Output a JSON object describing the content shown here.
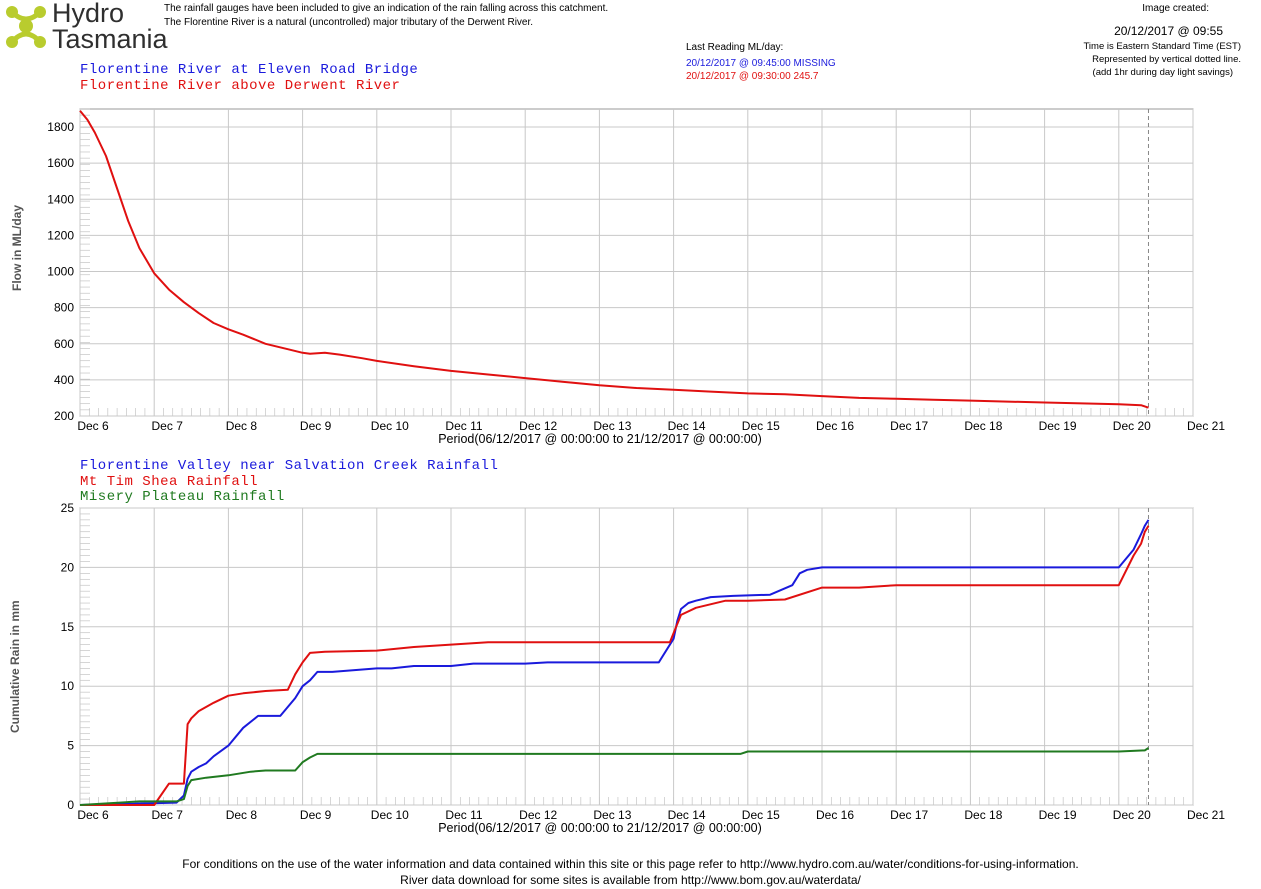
{
  "brand": {
    "line1": "Hydro",
    "line2": "Tasmania"
  },
  "intro": {
    "line1": "The rainfall gauges have been included to give an indication of the rain falling across this catchment.",
    "line2": "The Florentine River is a natural (uncontrolled) major tributary of the Derwent River."
  },
  "last_reading": {
    "label": "Last Reading ML/day:",
    "blue": "20/12/2017 @ 09:45:00 MISSING",
    "red": "20/12/2017 @ 09:30:00  245.7"
  },
  "image_created": {
    "label": "Image created:",
    "datetime": "20/12/2017 @ 09:55",
    "note1": "Time is Eastern Standard Time (EST)",
    "note2": "Represented by vertical dotted line.",
    "note3": "(add 1hr during day light savings)"
  },
  "colors": {
    "blue": "#1a1adc",
    "red": "#e01010",
    "green": "#207a20",
    "grid": "#c8c8c8"
  },
  "footer": {
    "line1": "For conditions on the use of the water information and data contained within this site or this page refer to http://www.hydro.com.au/water/conditions-for-using-information.",
    "line2": "River data download for some sites is available from http://www.bom.gov.au/waterdata/"
  },
  "chart_data": [
    {
      "type": "line",
      "title": "",
      "legend": [
        "Florentine River at Eleven Road Bridge",
        "Florentine River above Derwent River"
      ],
      "ylabel": "Flow in ML/day",
      "xlabel": "Period(06/12/2017 @ 00:00:00 to 21/12/2017 @ 00:00:00)",
      "x_ticks": [
        "Dec 6",
        "Dec 7",
        "Dec 8",
        "Dec 9",
        "Dec 10",
        "Dec 11",
        "Dec 12",
        "Dec 13",
        "Dec 14",
        "Dec 15",
        "Dec 16",
        "Dec 17",
        "Dec 18",
        "Dec 19",
        "Dec 20",
        "Dec 21"
      ],
      "ylim": [
        200,
        1900
      ],
      "y_ticks": [
        200,
        400,
        600,
        800,
        1000,
        1200,
        1400,
        1600,
        1800
      ],
      "current_time_marker": 14.4,
      "series": [
        {
          "name": "Florentine River at Eleven Road Bridge",
          "color": "blue",
          "x": [],
          "values": []
        },
        {
          "name": "Florentine River above Derwent River",
          "color": "red",
          "x": [
            0,
            0.1,
            0.2,
            0.35,
            0.5,
            0.65,
            0.8,
            1.0,
            1.2,
            1.4,
            1.6,
            1.8,
            2.0,
            2.2,
            2.5,
            2.8,
            3.0,
            3.1,
            3.3,
            3.5,
            3.8,
            4.0,
            4.5,
            5.0,
            5.5,
            6.0,
            6.5,
            7.0,
            7.5,
            8.0,
            8.5,
            9.0,
            9.5,
            10.0,
            10.5,
            11.0,
            11.5,
            12.0,
            12.5,
            13.0,
            13.5,
            14.0,
            14.3,
            14.4
          ],
          "values": [
            1890,
            1840,
            1770,
            1640,
            1460,
            1280,
            1130,
            990,
            900,
            830,
            770,
            715,
            680,
            650,
            600,
            570,
            550,
            545,
            550,
            540,
            520,
            505,
            475,
            450,
            430,
            410,
            390,
            370,
            355,
            345,
            335,
            325,
            320,
            310,
            300,
            295,
            290,
            285,
            280,
            275,
            270,
            265,
            260,
            246
          ]
        }
      ]
    },
    {
      "type": "line",
      "title": "",
      "legend": [
        "Florentine Valley near Salvation Creek Rainfall",
        "Mt Tim Shea Rainfall",
        "Misery Plateau Rainfall"
      ],
      "ylabel": "Cumulative Rain in mm",
      "xlabel": "Period(06/12/2017 @ 00:00:00 to 21/12/2017 @ 00:00:00)",
      "x_ticks": [
        "Dec 6",
        "Dec 7",
        "Dec 8",
        "Dec 9",
        "Dec 10",
        "Dec 11",
        "Dec 12",
        "Dec 13",
        "Dec 14",
        "Dec 15",
        "Dec 16",
        "Dec 17",
        "Dec 18",
        "Dec 19",
        "Dec 20",
        "Dec 21"
      ],
      "ylim": [
        0,
        25
      ],
      "y_ticks": [
        0,
        5,
        10,
        15,
        20,
        25
      ],
      "current_time_marker": 14.4,
      "series": [
        {
          "name": "Florentine Valley near Salvation Creek Rainfall",
          "color": "blue",
          "x": [
            0,
            1.3,
            1.4,
            1.45,
            1.5,
            1.6,
            1.7,
            1.8,
            2.0,
            2.2,
            2.4,
            2.7,
            2.9,
            3.0,
            3.1,
            3.2,
            3.4,
            4.0,
            4.2,
            4.5,
            5.0,
            5.3,
            6.0,
            6.3,
            7.5,
            7.8,
            8.0,
            8.05,
            8.1,
            8.2,
            8.3,
            8.5,
            8.8,
            9.3,
            9.6,
            9.7,
            9.8,
            10.0,
            10.5,
            11.0,
            14.0,
            14.2,
            14.3,
            14.35,
            14.4
          ],
          "values": [
            0,
            0.2,
            0.8,
            2.2,
            2.8,
            3.2,
            3.5,
            4.1,
            5.0,
            6.5,
            7.5,
            7.5,
            9.0,
            10.0,
            10.5,
            11.2,
            11.2,
            11.5,
            11.5,
            11.7,
            11.7,
            11.9,
            11.9,
            12.0,
            12.0,
            12.0,
            14.0,
            15.5,
            16.5,
            17.0,
            17.2,
            17.5,
            17.6,
            17.7,
            18.5,
            19.5,
            19.8,
            20.0,
            20.0,
            20.0,
            20.0,
            21.5,
            22.8,
            23.5,
            24.0
          ]
        },
        {
          "name": "Mt Tim Shea Rainfall",
          "color": "red",
          "x": [
            0,
            1.0,
            1.2,
            1.4,
            1.45,
            1.5,
            1.6,
            1.8,
            2.0,
            2.2,
            2.5,
            2.8,
            2.9,
            3.0,
            3.1,
            3.3,
            4.0,
            4.5,
            5.0,
            5.5,
            7.0,
            7.95,
            8.1,
            8.3,
            8.7,
            9.0,
            9.5,
            10.0,
            10.5,
            11.0,
            14.0,
            14.2,
            14.3,
            14.35,
            14.4
          ],
          "values": [
            0,
            0,
            1.8,
            1.8,
            6.8,
            7.3,
            7.9,
            8.6,
            9.2,
            9.4,
            9.6,
            9.7,
            11.0,
            12.0,
            12.8,
            12.9,
            13.0,
            13.3,
            13.5,
            13.7,
            13.7,
            13.7,
            16.0,
            16.6,
            17.2,
            17.2,
            17.3,
            18.3,
            18.3,
            18.5,
            18.5,
            21.0,
            22.0,
            23.0,
            23.5
          ]
        },
        {
          "name": "Misery Plateau Rainfall",
          "color": "green",
          "x": [
            0,
            0.8,
            1.0,
            1.3,
            1.4,
            1.45,
            1.5,
            1.7,
            2.0,
            2.3,
            2.5,
            2.9,
            3.0,
            3.1,
            3.2,
            4.0,
            5.0,
            6.0,
            7.0,
            8.0,
            8.9,
            9.0,
            10.0,
            11.0,
            12.0,
            13.0,
            14.0,
            14.35,
            14.4
          ],
          "values": [
            0,
            0.3,
            0.3,
            0.3,
            0.5,
            1.6,
            2.1,
            2.3,
            2.5,
            2.8,
            2.9,
            2.9,
            3.6,
            4.0,
            4.3,
            4.3,
            4.3,
            4.3,
            4.3,
            4.3,
            4.3,
            4.5,
            4.5,
            4.5,
            4.5,
            4.5,
            4.5,
            4.6,
            4.8
          ]
        }
      ]
    }
  ]
}
